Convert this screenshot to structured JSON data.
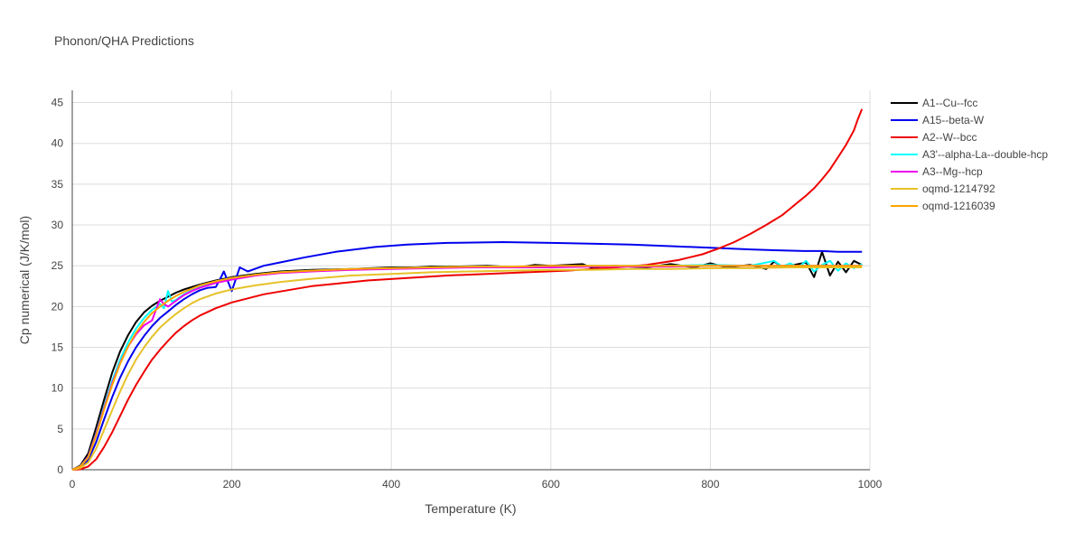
{
  "chart_data": {
    "type": "line",
    "title": "Phonon/QHA Predictions",
    "xlabel": "Temperature (K)",
    "ylabel": "Cp numerical (J/K/mol)",
    "xlim": [
      0,
      1000
    ],
    "ylim": [
      0,
      46.5
    ],
    "xticks": [
      0,
      200,
      400,
      600,
      800,
      1000
    ],
    "yticks": [
      0,
      5,
      10,
      15,
      20,
      25,
      30,
      35,
      40,
      45
    ],
    "grid": true,
    "legend_position": "top-right",
    "series": [
      {
        "name": "A1--Cu--fcc",
        "color": "#000000",
        "x": [
          0,
          10,
          20,
          30,
          40,
          50,
          60,
          70,
          80,
          90,
          100,
          110,
          120,
          130,
          140,
          150,
          160,
          180,
          200,
          230,
          260,
          300,
          350,
          400,
          430,
          450,
          480,
          520,
          560,
          580,
          600,
          640,
          650,
          680,
          720,
          750,
          780,
          800,
          820,
          850,
          870,
          880,
          890,
          900,
          910,
          920,
          930,
          940,
          950,
          960,
          970,
          980,
          990
        ],
        "y": [
          0,
          0.5,
          2.0,
          5.2,
          8.6,
          11.9,
          14.5,
          16.5,
          18.1,
          19.3,
          20.1,
          20.7,
          21.2,
          21.7,
          22.1,
          22.4,
          22.7,
          23.2,
          23.6,
          24.0,
          24.3,
          24.5,
          24.6,
          24.8,
          24.8,
          24.9,
          24.9,
          25.0,
          24.8,
          25.1,
          25.0,
          25.2,
          24.8,
          25.0,
          24.8,
          25.2,
          24.8,
          25.3,
          24.8,
          25.1,
          24.6,
          25.5,
          24.9,
          25.0,
          25.2,
          25.4,
          23.6,
          26.7,
          23.8,
          25.5,
          24.2,
          25.6,
          25.1
        ]
      },
      {
        "name": "A15--beta-W",
        "color": "#0000ee",
        "x": [
          0,
          10,
          20,
          30,
          40,
          50,
          60,
          70,
          80,
          90,
          100,
          110,
          120,
          130,
          140,
          150,
          160,
          170,
          180,
          185,
          190,
          200,
          210,
          220,
          240,
          260,
          290,
          330,
          380,
          420,
          470,
          540,
          600,
          650,
          700,
          750,
          800,
          850,
          880,
          920,
          940,
          960,
          980,
          990
        ],
        "y": [
          0,
          0.3,
          1.2,
          3.4,
          6.2,
          8.9,
          11.3,
          13.3,
          15.0,
          16.4,
          17.6,
          18.6,
          19.4,
          20.2,
          20.9,
          21.5,
          22.0,
          22.3,
          22.4,
          23.3,
          24.3,
          21.9,
          24.8,
          24.3,
          25.0,
          25.4,
          26.0,
          26.7,
          27.3,
          27.6,
          27.8,
          27.9,
          27.8,
          27.7,
          27.6,
          27.4,
          27.2,
          27.0,
          26.9,
          26.8,
          26.8,
          26.7,
          26.7,
          26.7
        ]
      },
      {
        "name": "A2--W--bcc",
        "color": "#ee0000",
        "x": [
          0,
          10,
          20,
          30,
          40,
          50,
          60,
          70,
          80,
          90,
          100,
          110,
          120,
          130,
          140,
          150,
          160,
          180,
          200,
          220,
          240,
          270,
          300,
          330,
          370,
          420,
          470,
          520,
          570,
          620,
          670,
          720,
          760,
          790,
          810,
          830,
          850,
          870,
          880,
          890,
          900,
          910,
          920,
          930,
          940,
          950,
          960,
          970,
          980,
          985,
          990
        ],
        "y": [
          0,
          0.05,
          0.4,
          1.3,
          2.8,
          4.6,
          6.6,
          8.6,
          10.4,
          12.0,
          13.5,
          14.7,
          15.8,
          16.8,
          17.6,
          18.3,
          18.9,
          19.8,
          20.5,
          21.0,
          21.5,
          22.0,
          22.5,
          22.8,
          23.2,
          23.5,
          23.8,
          24.0,
          24.2,
          24.4,
          24.7,
          25.1,
          25.7,
          26.4,
          27.1,
          27.9,
          28.9,
          30.0,
          30.6,
          31.2,
          32.0,
          32.8,
          33.6,
          34.5,
          35.6,
          36.8,
          38.3,
          39.8,
          41.6,
          43.0,
          44.2
        ]
      },
      {
        "name": "A3'--alpha-La--double-hcp",
        "color": "#00ffff",
        "x": [
          0,
          10,
          20,
          30,
          40,
          50,
          60,
          70,
          80,
          90,
          100,
          110,
          115,
          120,
          125,
          130,
          140,
          150,
          160,
          180,
          200,
          230,
          260,
          300,
          350,
          400,
          450,
          500,
          550,
          600,
          650,
          700,
          750,
          800,
          850,
          880,
          890,
          900,
          910,
          920,
          930,
          940,
          950,
          960,
          970,
          980,
          990
        ],
        "y": [
          0,
          0.4,
          1.6,
          4.5,
          7.8,
          10.9,
          13.5,
          15.6,
          17.3,
          18.6,
          19.6,
          20.3,
          19.8,
          21.9,
          20.6,
          20.8,
          21.5,
          22.0,
          22.5,
          23.1,
          23.5,
          23.9,
          24.2,
          24.4,
          24.6,
          24.7,
          24.8,
          24.9,
          24.9,
          24.9,
          25.0,
          25.0,
          25.0,
          25.1,
          25.0,
          25.6,
          24.9,
          25.3,
          24.8,
          25.6,
          24.3,
          25.1,
          25.6,
          24.4,
          25.3,
          24.7,
          25.2
        ]
      },
      {
        "name": "A3--Mg--hcp",
        "color": "#ee00ee",
        "x": [
          0,
          10,
          20,
          30,
          40,
          50,
          60,
          70,
          80,
          90,
          100,
          110,
          115,
          120,
          130,
          140,
          150,
          160,
          180,
          200,
          230,
          260,
          300,
          350,
          400,
          450,
          500,
          550,
          600,
          650,
          700,
          750,
          800,
          850,
          900,
          950,
          990
        ],
        "y": [
          0,
          0.4,
          1.6,
          4.4,
          7.6,
          10.6,
          13.1,
          15.1,
          16.6,
          17.7,
          18.3,
          20.9,
          20.3,
          20.0,
          20.7,
          21.4,
          21.9,
          22.3,
          22.9,
          23.3,
          23.8,
          24.1,
          24.3,
          24.5,
          24.6,
          24.7,
          24.8,
          24.8,
          24.8,
          24.9,
          24.9,
          24.9,
          25.0,
          25.0,
          25.0,
          25.0,
          25.0
        ]
      },
      {
        "name": "oqmd-1214792",
        "color": "#e6c229",
        "x": [
          0,
          10,
          20,
          30,
          40,
          50,
          60,
          70,
          80,
          90,
          100,
          110,
          120,
          130,
          140,
          150,
          160,
          180,
          200,
          230,
          260,
          300,
          350,
          400,
          450,
          500,
          550,
          600,
          650,
          700,
          750,
          800,
          850,
          900,
          950,
          990
        ],
        "y": [
          0,
          0.2,
          0.9,
          2.6,
          4.9,
          7.3,
          9.6,
          11.7,
          13.5,
          15.0,
          16.3,
          17.4,
          18.3,
          19.1,
          19.8,
          20.4,
          20.9,
          21.6,
          22.1,
          22.6,
          23.0,
          23.4,
          23.8,
          24.0,
          24.2,
          24.3,
          24.4,
          24.5,
          24.5,
          24.6,
          24.6,
          24.7,
          24.7,
          24.8,
          24.8,
          24.8
        ]
      },
      {
        "name": "oqmd-1216039",
        "color": "#ffa500",
        "x": [
          0,
          10,
          20,
          30,
          40,
          50,
          60,
          70,
          80,
          90,
          100,
          110,
          120,
          130,
          140,
          150,
          160,
          180,
          200,
          230,
          260,
          300,
          350,
          400,
          450,
          500,
          550,
          600,
          650,
          700,
          750,
          800,
          850,
          900,
          950,
          990
        ],
        "y": [
          0,
          0.4,
          1.5,
          4.2,
          7.4,
          10.4,
          13.0,
          15.1,
          16.8,
          18.1,
          19.2,
          20.0,
          20.7,
          21.3,
          21.8,
          22.2,
          22.6,
          23.1,
          23.5,
          23.9,
          24.2,
          24.4,
          24.6,
          24.7,
          24.8,
          24.9,
          24.9,
          25.0,
          25.0,
          25.0,
          25.0,
          25.0,
          25.0,
          25.0,
          25.0,
          25.0
        ]
      }
    ]
  }
}
